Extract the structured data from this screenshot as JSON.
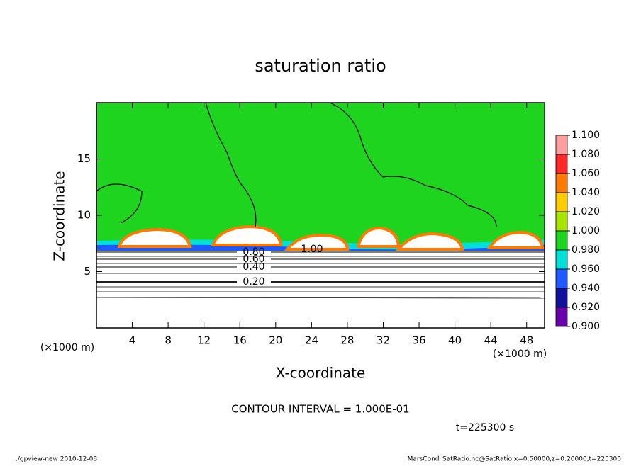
{
  "chart_data": {
    "type": "contour",
    "title": "saturation ratio",
    "xlabel": "X-coordinate",
    "ylabel": "Z-coordinate",
    "xunit": "(×1000 m)",
    "yunit": "(×1000 m)",
    "xlim": [
      0,
      50
    ],
    "xticks": [
      4,
      8,
      12,
      16,
      20,
      24,
      28,
      32,
      36,
      40,
      44,
      48
    ],
    "ylim": [
      0,
      20
    ],
    "yticks": [
      5,
      10,
      15
    ],
    "contour_interval": "CONTOUR INTERVAL = 1.000E-01",
    "time_label": "t=225300 s",
    "footer_left": "./gpview-new  2010-12-08",
    "footer_right": "MarsCond_SatRatio.nc@SatRatio,x=0:50000,z=0:20000,t=225300",
    "contour_labels": [
      {
        "value": 0.2,
        "label": "0.20"
      },
      {
        "value": 0.4,
        "label": "0.40"
      },
      {
        "value": 0.6,
        "label": "0.60"
      },
      {
        "value": 0.8,
        "label": "0.80"
      },
      {
        "value": 1.0,
        "label": "1.00"
      }
    ],
    "colorbar": {
      "ticks": [
        {
          "value": 1.1,
          "label": "1.100"
        },
        {
          "value": 1.08,
          "label": "1.080"
        },
        {
          "value": 1.06,
          "label": "1.060"
        },
        {
          "value": 1.04,
          "label": "1.040"
        },
        {
          "value": 1.02,
          "label": "1.020"
        },
        {
          "value": 1.0,
          "label": "1.000"
        },
        {
          "value": 0.98,
          "label": "0.980"
        },
        {
          "value": 0.96,
          "label": "0.960"
        },
        {
          "value": 0.94,
          "label": "0.940"
        },
        {
          "value": 0.92,
          "label": "0.920"
        },
        {
          "value": 0.9,
          "label": "0.900"
        }
      ],
      "colors": [
        "#ff9c9c",
        "#ff2828",
        "#ff7a00",
        "#ffcc00",
        "#a8e400",
        "#1ed41e",
        "#00e0d8",
        "#1e5aff",
        "#10109c",
        "#6a00aa"
      ]
    }
  }
}
